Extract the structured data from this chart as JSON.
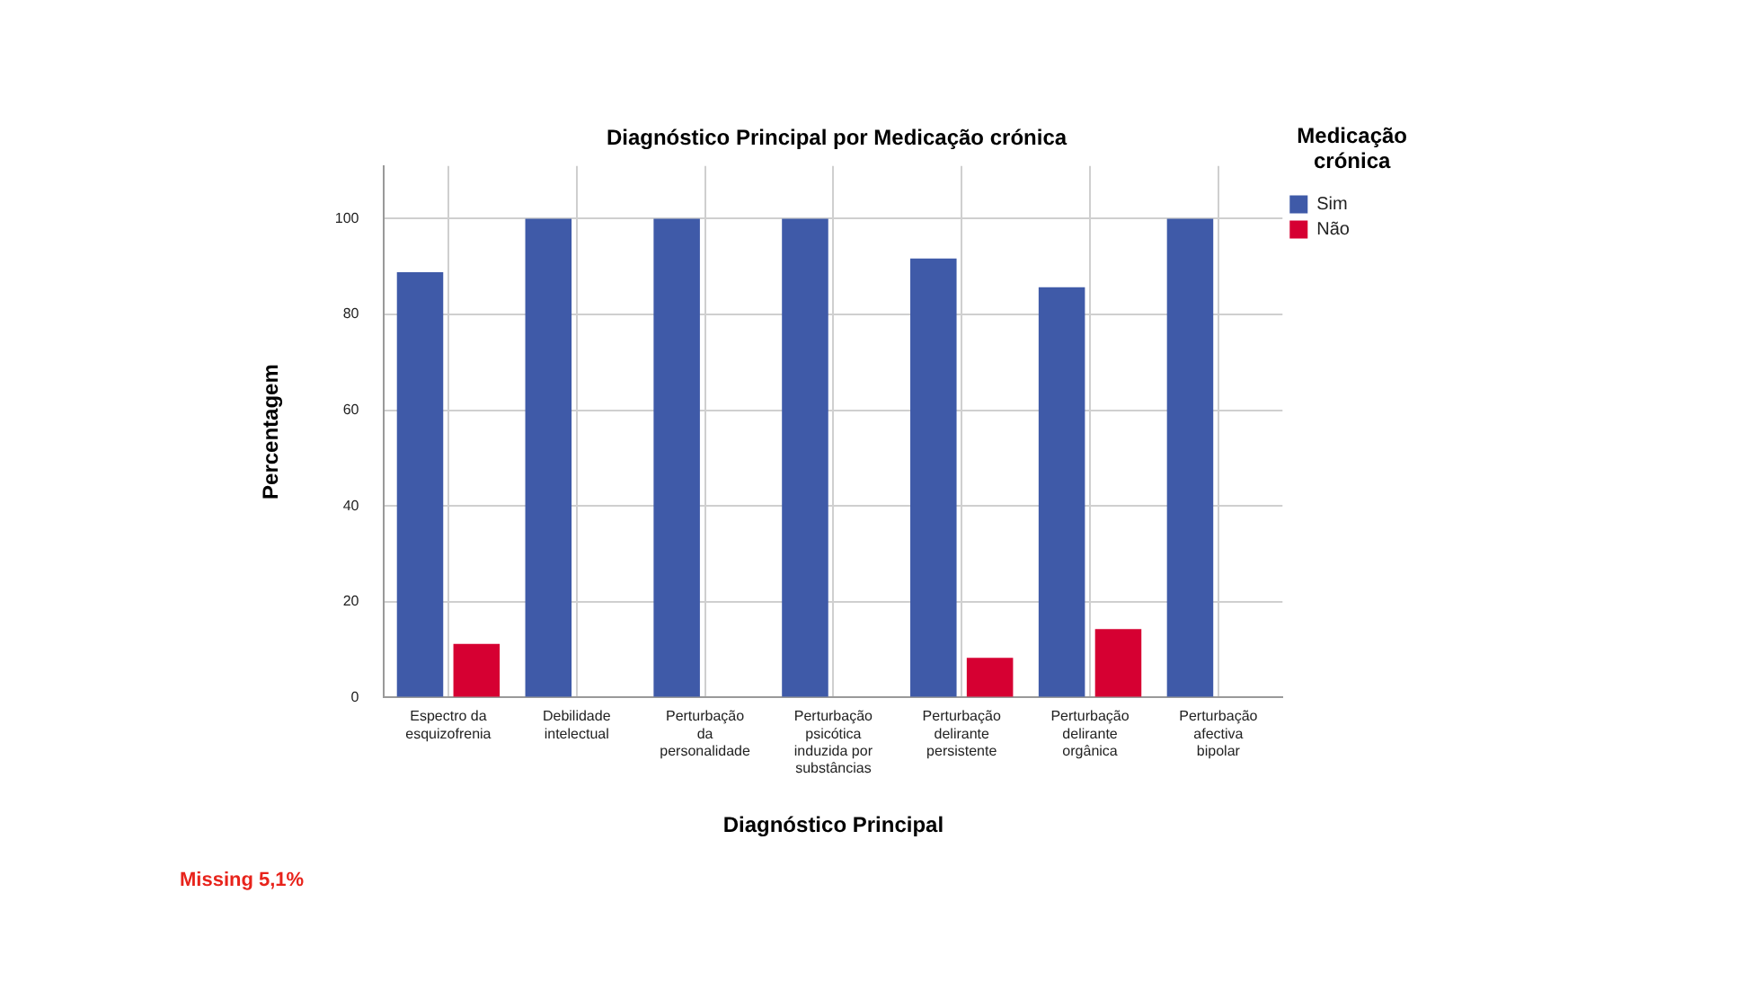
{
  "chart_data": {
    "type": "bar",
    "title": "Diagnóstico Principal por Medicação crónica",
    "xlabel": "Diagnóstico Principal",
    "ylabel": "Percentagem",
    "legend_title": "Medicação crónica",
    "categories": [
      "Espectro da esquizofrenia",
      "Debilidade intelectual",
      "Perturbação da personalidade",
      "Perturbação psicótica induzida por substâncias",
      "Perturbação delirante persistente",
      "Perturbação delirante orgânica",
      "Perturbação afectiva bipolar"
    ],
    "series": [
      {
        "name": "Sim",
        "color": "#3f5aa8",
        "values": [
          88.8,
          100,
          100,
          100,
          91.7,
          85.7,
          100
        ]
      },
      {
        "name": "Não",
        "color": "#d60032",
        "values": [
          11.2,
          null,
          null,
          null,
          8.3,
          14.3,
          null
        ]
      }
    ],
    "ylim": [
      0,
      111
    ],
    "yticks": [
      0,
      20,
      40,
      60,
      80,
      100
    ],
    "grid": true,
    "legend": "right",
    "annotations": [
      "Missing 5,1%"
    ]
  }
}
